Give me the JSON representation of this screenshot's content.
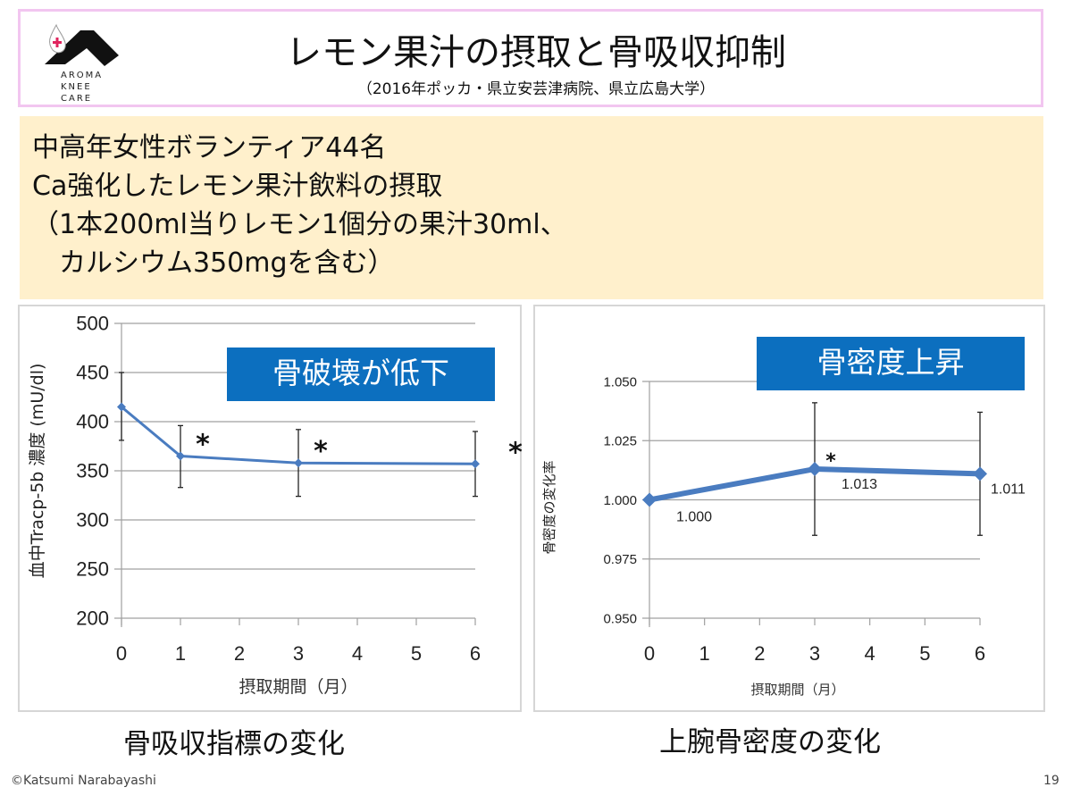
{
  "header": {
    "title": "レモン果汁の摂取と骨吸収抑制",
    "subtitle": "（2016年ポッカ・県立安芸津病院、県立広島大学）",
    "logo_text": "AROMA KNEE CARE"
  },
  "info": {
    "lines": [
      "中高年女性ボランティア44名",
      "Ca強化したレモン果汁飲料の摂取",
      "（1本200ml当りレモン1個分の果汁30ml、",
      "　カルシウム350mgを含む）"
    ]
  },
  "footer": {
    "copyright": "©Katsumi Narabayashi",
    "page": "19"
  },
  "colors": {
    "line": "#4a7cc0",
    "badge": "#0c6fbf",
    "info_bg": "#fff0cc",
    "title_border": "#f2c6f0"
  },
  "chart_data": [
    {
      "type": "line",
      "caption": "骨吸収指標の変化",
      "badge": "骨破壊が低下",
      "xlabel": "摂取期間（月）",
      "ylabel": "血中Tracp-5b 濃度 (mU/dl)",
      "x": [
        0,
        1,
        3,
        6
      ],
      "values": [
        415,
        365,
        358,
        357
      ],
      "err_high": [
        450,
        396,
        392,
        390
      ],
      "err_low": [
        381,
        333,
        324,
        324
      ],
      "significant": [
        false,
        true,
        true,
        true
      ],
      "xticks": [
        "0",
        "1",
        "2",
        "3",
        "4",
        "5",
        "6"
      ],
      "yticks": [
        "200",
        "250",
        "300",
        "350",
        "400",
        "450",
        "500"
      ],
      "xlim": [
        0,
        6
      ],
      "ylim": [
        200,
        500
      ],
      "grid": true
    },
    {
      "type": "line",
      "caption": "上腕骨密度の変化",
      "badge": "骨密度上昇",
      "xlabel": "摂取期間（月）",
      "ylabel": "骨密度の変化率",
      "x": [
        0,
        3,
        6
      ],
      "values": [
        1.0,
        1.013,
        1.011
      ],
      "data_labels": [
        "1.000",
        "1.013",
        "1.011"
      ],
      "err_high": [
        null,
        1.041,
        1.037
      ],
      "err_low": [
        null,
        0.985,
        0.985
      ],
      "significant": [
        false,
        true,
        false
      ],
      "xticks": [
        "0",
        "1",
        "2",
        "3",
        "4",
        "5",
        "6"
      ],
      "yticks": [
        "0.950",
        "0.975",
        "1.000",
        "1.025",
        "1.050"
      ],
      "xlim": [
        0,
        6
      ],
      "ylim": [
        0.95,
        1.05
      ],
      "grid": true
    }
  ]
}
